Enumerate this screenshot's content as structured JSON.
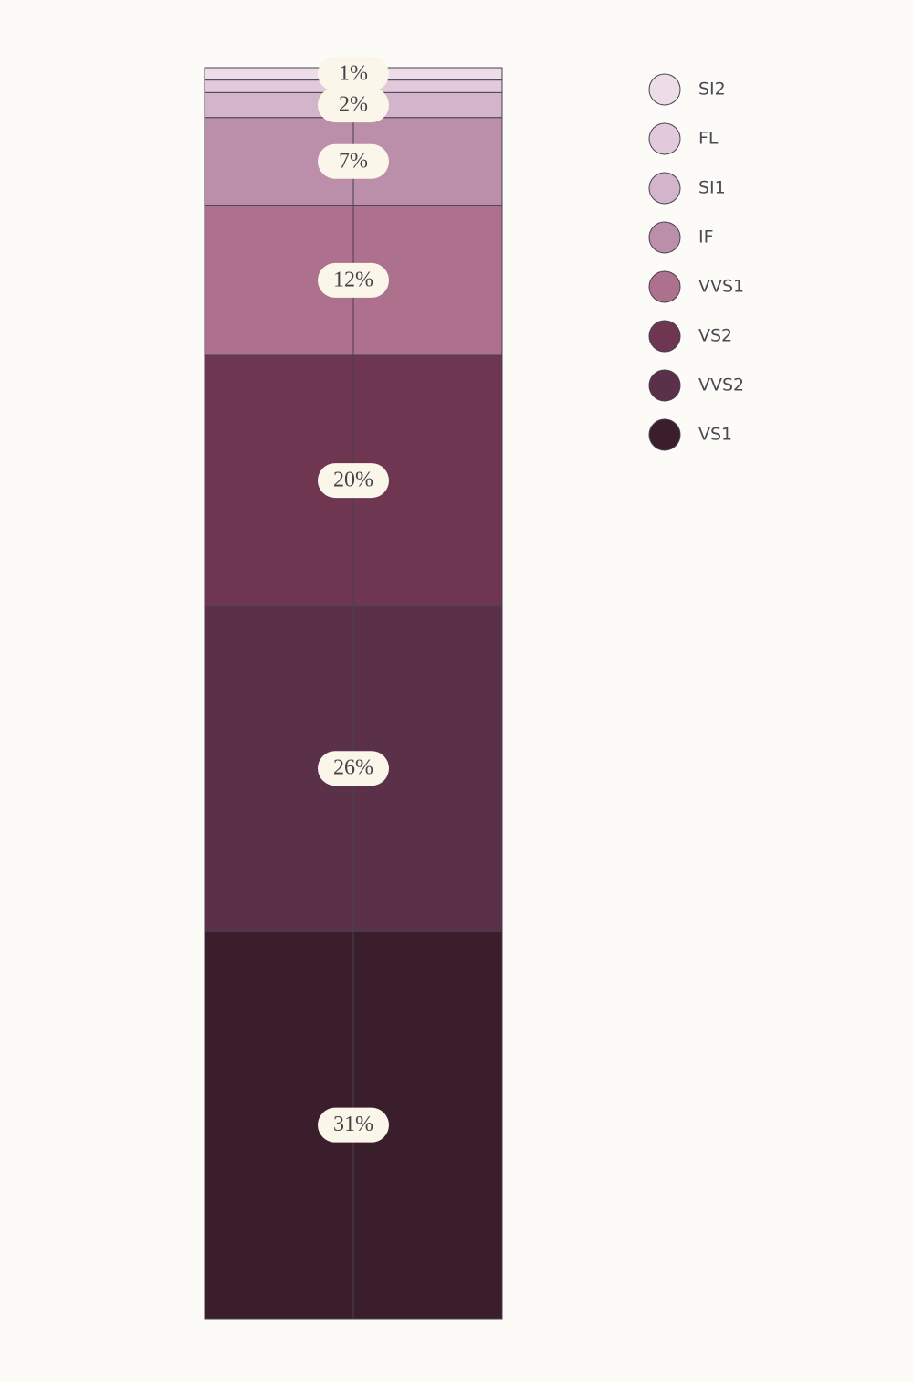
{
  "chart_data": {
    "type": "stacked_bar",
    "series": [
      {
        "name": "SI2",
        "color": "#ecdde8",
        "values": [
          1
        ],
        "value_labels": [
          "1%"
        ]
      },
      {
        "name": "FL",
        "color": "#e2cadb",
        "values": [
          1
        ]
      },
      {
        "name": "SI1",
        "color": "#d2b5ca",
        "values": [
          2
        ],
        "value_labels": [
          "2%"
        ]
      },
      {
        "name": "IF",
        "color": "#bb8ea9",
        "values": [
          7
        ],
        "value_labels": [
          "7%"
        ]
      },
      {
        "name": "VVS1",
        "color": "#ad718e",
        "values": [
          12
        ],
        "value_labels": [
          "12%"
        ]
      },
      {
        "name": "VS2",
        "color": "#6e3650",
        "values": [
          20
        ],
        "value_labels": [
          "20%"
        ]
      },
      {
        "name": "VVS2",
        "color": "#5b3049",
        "values": [
          26
        ],
        "value_labels": [
          "26%"
        ]
      },
      {
        "name": "VS1",
        "color": "#3a1e2b",
        "values": [
          31
        ],
        "value_labels": [
          "31%"
        ]
      }
    ]
  }
}
